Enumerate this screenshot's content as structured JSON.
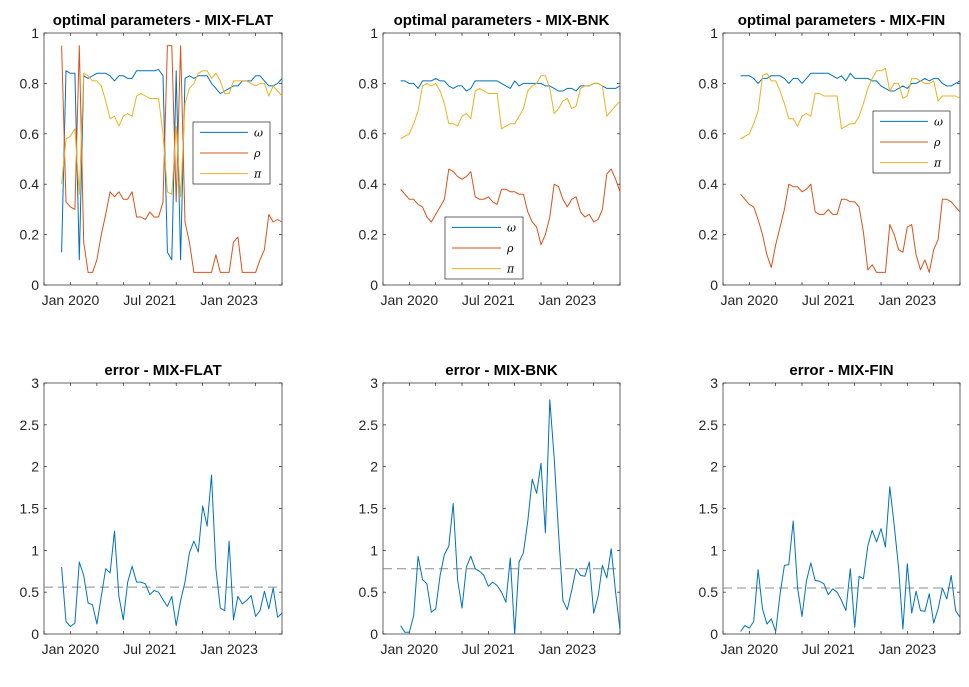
{
  "dates": [
    "2019-11",
    "2019-12",
    "2020-01",
    "2020-02",
    "2020-03",
    "2020-04",
    "2020-05",
    "2020-06",
    "2020-07",
    "2020-08",
    "2020-09",
    "2020-10",
    "2020-11",
    "2020-12",
    "2021-01",
    "2021-02",
    "2021-03",
    "2021-04",
    "2021-05",
    "2021-06",
    "2021-07",
    "2021-08",
    "2021-09",
    "2021-10",
    "2021-11",
    "2021-12",
    "2022-01",
    "2022-02",
    "2022-03",
    "2022-04",
    "2022-05",
    "2022-06",
    "2022-07",
    "2022-08",
    "2022-09",
    "2022-10",
    "2022-11",
    "2022-12",
    "2023-01",
    "2023-02",
    "2023-03",
    "2023-04",
    "2023-05",
    "2023-06",
    "2023-07",
    "2023-08",
    "2023-09",
    "2023-10",
    "2023-11",
    "2023-12",
    "2024-01"
  ],
  "colors": {
    "omega": "#0072BD",
    "rho": "#D95319",
    "pi": "#EDB120",
    "mean_line": "#8c8c8c"
  },
  "chart_data": [
    {
      "type": "line",
      "title": "optimal parameters - MIX-FLAT",
      "xlim": [
        "2019-07",
        "2024-01"
      ],
      "ylim": [
        0,
        1
      ],
      "yticks": [
        "0",
        "0.2",
        "0.4",
        "0.6",
        "0.8",
        "1"
      ],
      "xticklabels": [
        "Jan 2020",
        "Jul 2021",
        "Jan 2023"
      ],
      "legend": "right",
      "series": [
        {
          "name": "ω",
          "color": "#0072BD",
          "values": [
            0.13,
            0.85,
            0.84,
            0.84,
            0.1,
            0.83,
            0.82,
            0.83,
            0.84,
            0.84,
            0.84,
            0.83,
            0.81,
            0.83,
            0.83,
            0.82,
            0.82,
            0.85,
            0.85,
            0.85,
            0.85,
            0.85,
            0.855,
            0.83,
            0.13,
            0.1,
            0.85,
            0.1,
            0.82,
            0.83,
            0.82,
            0.83,
            0.83,
            0.83,
            0.8,
            0.78,
            0.76,
            0.77,
            0.78,
            0.79,
            0.79,
            0.81,
            0.81,
            0.81,
            0.83,
            0.83,
            0.81,
            0.79,
            0.79,
            0.8,
            0.82
          ]
        },
        {
          "name": "ρ",
          "color": "#D95319",
          "values": [
            0.95,
            0.33,
            0.31,
            0.3,
            0.95,
            0.17,
            0.05,
            0.05,
            0.1,
            0.2,
            0.28,
            0.37,
            0.35,
            0.37,
            0.34,
            0.34,
            0.37,
            0.27,
            0.27,
            0.26,
            0.29,
            0.27,
            0.27,
            0.33,
            0.95,
            0.95,
            0.33,
            0.95,
            0.25,
            0.17,
            0.05,
            0.05,
            0.05,
            0.05,
            0.05,
            0.12,
            0.05,
            0.05,
            0.05,
            0.17,
            0.19,
            0.05,
            0.05,
            0.05,
            0.05,
            0.1,
            0.14,
            0.28,
            0.25,
            0.26,
            0.25
          ]
        },
        {
          "name": "π",
          "color": "#EDB120",
          "values": [
            0.4,
            0.58,
            0.59,
            0.62,
            0.36,
            0.84,
            0.83,
            0.81,
            0.81,
            0.79,
            0.73,
            0.66,
            0.67,
            0.63,
            0.67,
            0.68,
            0.67,
            0.75,
            0.76,
            0.75,
            0.74,
            0.74,
            0.74,
            0.6,
            0.37,
            0.36,
            0.63,
            0.35,
            0.72,
            0.78,
            0.8,
            0.84,
            0.85,
            0.85,
            0.82,
            0.84,
            0.81,
            0.76,
            0.76,
            0.81,
            0.81,
            0.81,
            0.81,
            0.8,
            0.79,
            0.8,
            0.8,
            0.75,
            0.79,
            0.77,
            0.75
          ]
        }
      ]
    },
    {
      "type": "line",
      "title": "optimal parameters - MIX-BNK",
      "xlim": [
        "2019-07",
        "2024-01"
      ],
      "ylim": [
        0,
        1
      ],
      "yticks": [
        "0",
        "0.2",
        "0.4",
        "0.6",
        "0.8",
        "1"
      ],
      "xticklabels": [
        "Jan 2020",
        "Jul 2021",
        "Jan 2023"
      ],
      "legend": "bottom",
      "series": [
        {
          "name": "ω",
          "color": "#0072BD",
          "values": [
            0.81,
            0.81,
            0.8,
            0.8,
            0.78,
            0.81,
            0.81,
            0.81,
            0.82,
            0.81,
            0.81,
            0.79,
            0.78,
            0.79,
            0.79,
            0.77,
            0.78,
            0.81,
            0.81,
            0.81,
            0.81,
            0.81,
            0.81,
            0.8,
            0.79,
            0.78,
            0.81,
            0.79,
            0.8,
            0.8,
            0.8,
            0.8,
            0.8,
            0.79,
            0.79,
            0.78,
            0.77,
            0.77,
            0.78,
            0.78,
            0.77,
            0.79,
            0.79,
            0.79,
            0.8,
            0.8,
            0.79,
            0.78,
            0.78,
            0.78,
            0.79
          ]
        },
        {
          "name": "ρ",
          "color": "#D95319",
          "values": [
            0.38,
            0.36,
            0.34,
            0.34,
            0.32,
            0.31,
            0.27,
            0.25,
            0.28,
            0.31,
            0.34,
            0.46,
            0.45,
            0.43,
            0.42,
            0.43,
            0.45,
            0.35,
            0.34,
            0.34,
            0.35,
            0.33,
            0.32,
            0.38,
            0.38,
            0.37,
            0.37,
            0.36,
            0.36,
            0.29,
            0.25,
            0.23,
            0.16,
            0.2,
            0.27,
            0.4,
            0.39,
            0.34,
            0.31,
            0.34,
            0.35,
            0.29,
            0.27,
            0.28,
            0.25,
            0.26,
            0.3,
            0.44,
            0.46,
            0.42,
            0.37
          ]
        },
        {
          "name": "π",
          "color": "#EDB120",
          "values": [
            0.58,
            0.59,
            0.6,
            0.64,
            0.69,
            0.79,
            0.8,
            0.79,
            0.8,
            0.77,
            0.72,
            0.64,
            0.64,
            0.63,
            0.67,
            0.68,
            0.66,
            0.77,
            0.78,
            0.77,
            0.76,
            0.76,
            0.76,
            0.62,
            0.63,
            0.64,
            0.64,
            0.67,
            0.7,
            0.77,
            0.79,
            0.8,
            0.83,
            0.83,
            0.78,
            0.68,
            0.7,
            0.73,
            0.74,
            0.7,
            0.71,
            0.78,
            0.79,
            0.79,
            0.8,
            0.8,
            0.79,
            0.67,
            0.69,
            0.71,
            0.73
          ]
        }
      ]
    },
    {
      "type": "line",
      "title": "optimal parameters - MIX-FIN",
      "xlim": [
        "2019-07",
        "2024-01"
      ],
      "ylim": [
        0,
        1
      ],
      "yticks": [
        "0",
        "0.2",
        "0.4",
        "0.6",
        "0.8",
        "1"
      ],
      "xticklabels": [
        "Jan 2020",
        "Jul 2021",
        "Jan 2023"
      ],
      "legend": "right",
      "series": [
        {
          "name": "ω",
          "color": "#0072BD",
          "values": [
            0.83,
            0.83,
            0.83,
            0.82,
            0.8,
            0.82,
            0.82,
            0.83,
            0.83,
            0.83,
            0.82,
            0.8,
            0.82,
            0.82,
            0.8,
            0.82,
            0.84,
            0.84,
            0.84,
            0.84,
            0.84,
            0.83,
            0.82,
            0.83,
            0.81,
            0.84,
            0.82,
            0.82,
            0.82,
            0.82,
            0.81,
            0.81,
            0.79,
            0.78,
            0.77,
            0.77,
            0.78,
            0.79,
            0.78,
            0.8,
            0.8,
            0.81,
            0.82,
            0.81,
            0.82,
            0.82,
            0.8,
            0.79,
            0.79,
            0.8,
            0.81
          ]
        },
        {
          "name": "ρ",
          "color": "#D95319",
          "values": [
            0.36,
            0.34,
            0.32,
            0.31,
            0.26,
            0.2,
            0.12,
            0.07,
            0.16,
            0.23,
            0.3,
            0.4,
            0.39,
            0.39,
            0.37,
            0.38,
            0.4,
            0.29,
            0.28,
            0.28,
            0.3,
            0.28,
            0.28,
            0.34,
            0.34,
            0.33,
            0.33,
            0.31,
            0.21,
            0.06,
            0.08,
            0.05,
            0.05,
            0.05,
            0.24,
            0.2,
            0.14,
            0.13,
            0.23,
            0.24,
            0.12,
            0.06,
            0.1,
            0.05,
            0.14,
            0.18,
            0.34,
            0.34,
            0.33,
            0.31,
            0.29
          ]
        },
        {
          "name": "π",
          "color": "#EDB120",
          "values": [
            0.58,
            0.59,
            0.6,
            0.64,
            0.69,
            0.83,
            0.84,
            0.81,
            0.81,
            0.77,
            0.72,
            0.66,
            0.66,
            0.63,
            0.67,
            0.68,
            0.67,
            0.76,
            0.76,
            0.75,
            0.75,
            0.75,
            0.75,
            0.62,
            0.63,
            0.64,
            0.64,
            0.67,
            0.72,
            0.78,
            0.82,
            0.85,
            0.85,
            0.86,
            0.77,
            0.8,
            0.8,
            0.74,
            0.75,
            0.82,
            0.82,
            0.81,
            0.8,
            0.8,
            0.81,
            0.73,
            0.75,
            0.75,
            0.75,
            0.75,
            0.74
          ]
        }
      ]
    },
    {
      "type": "line",
      "title": "error - MIX-FLAT",
      "xlim": [
        "2019-07",
        "2024-01"
      ],
      "ylim": [
        0,
        3
      ],
      "yticks": [
        "0",
        "0.5",
        "1",
        "1.5",
        "2",
        "2.5",
        "3"
      ],
      "xticklabels": [
        "Jan 2020",
        "Jul 2021",
        "Jan 2023"
      ],
      "mean": 0.56,
      "series": [
        {
          "color": "#0072BD",
          "values": [
            0.8,
            0.15,
            0.09,
            0.13,
            0.86,
            0.7,
            0.37,
            0.35,
            0.12,
            0.45,
            0.78,
            0.73,
            1.23,
            0.45,
            0.17,
            0.62,
            0.81,
            0.62,
            0.62,
            0.6,
            0.47,
            0.52,
            0.5,
            0.41,
            0.33,
            0.45,
            0.1,
            0.4,
            0.62,
            0.97,
            1.11,
            0.98,
            1.53,
            1.29,
            1.9,
            0.78,
            0.31,
            0.28,
            1.11,
            0.17,
            0.45,
            0.36,
            0.4,
            0.46,
            0.21,
            0.28,
            0.51,
            0.3,
            0.55,
            0.2,
            0.25
          ]
        }
      ]
    },
    {
      "type": "line",
      "title": "error - MIX-BNK",
      "xlim": [
        "2019-07",
        "2024-01"
      ],
      "ylim": [
        0,
        3
      ],
      "yticks": [
        "0",
        "0.5",
        "1",
        "1.5",
        "2",
        "2.5",
        "3"
      ],
      "xticklabels": [
        "Jan 2020",
        "Jul 2021",
        "Jan 2023"
      ],
      "mean": 0.78,
      "series": [
        {
          "color": "#0072BD",
          "values": [
            0.1,
            0.02,
            0.02,
            0.22,
            0.93,
            0.65,
            0.6,
            0.26,
            0.3,
            0.7,
            0.95,
            1.05,
            1.56,
            0.65,
            0.31,
            0.8,
            0.93,
            0.78,
            0.75,
            0.7,
            0.57,
            0.62,
            0.58,
            0.5,
            0.38,
            0.91,
            0.0,
            0.86,
            0.97,
            1.35,
            1.85,
            1.68,
            2.04,
            1.21,
            2.8,
            2.1,
            1.2,
            0.4,
            0.29,
            0.52,
            0.78,
            0.7,
            0.69,
            0.86,
            0.25,
            0.45,
            0.82,
            0.67,
            1.02,
            0.5,
            0.05
          ]
        }
      ]
    },
    {
      "type": "line",
      "title": "error - MIX-FIN",
      "xlim": [
        "2019-07",
        "2024-01"
      ],
      "ylim": [
        0,
        3
      ],
      "yticks": [
        "0",
        "0.5",
        "1",
        "1.5",
        "2",
        "2.5",
        "3"
      ],
      "xticklabels": [
        "Jan 2020",
        "Jul 2021",
        "Jan 2023"
      ],
      "mean": 0.55,
      "series": [
        {
          "color": "#0072BD",
          "values": [
            0.03,
            0.1,
            0.07,
            0.15,
            0.77,
            0.3,
            0.12,
            0.18,
            0.03,
            0.48,
            0.82,
            0.83,
            1.35,
            0.55,
            0.21,
            0.63,
            0.85,
            0.64,
            0.63,
            0.6,
            0.47,
            0.54,
            0.5,
            0.4,
            0.28,
            0.78,
            0.08,
            0.69,
            0.66,
            1.05,
            1.24,
            1.1,
            1.26,
            1.04,
            1.76,
            1.3,
            0.79,
            0.06,
            0.84,
            0.25,
            0.51,
            0.28,
            0.27,
            0.48,
            0.13,
            0.3,
            0.55,
            0.42,
            0.7,
            0.28,
            0.2
          ]
        }
      ]
    }
  ]
}
